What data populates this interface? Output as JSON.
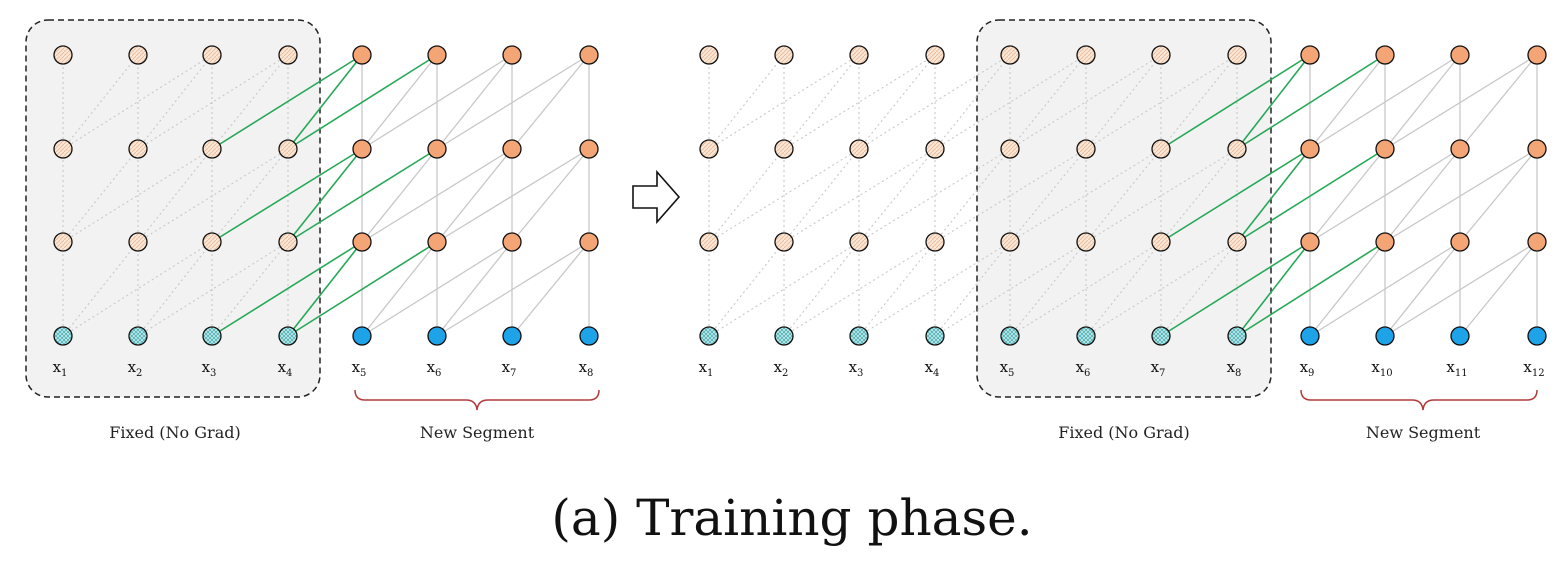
{
  "panels": [
    {
      "x_labels": [
        "x1",
        "x2",
        "x3",
        "x4",
        "x5",
        "x6",
        "x7",
        "x8"
      ],
      "fixed_label": "Fixed (No Grad)",
      "segment_label": "New Segment"
    },
    {
      "x_labels": [
        "x1",
        "x2",
        "x3",
        "x4",
        "x5",
        "x6",
        "x7",
        "x8",
        "x9",
        "x10",
        "x11",
        "x12"
      ],
      "fixed_label": "Fixed (No Grad)",
      "segment_label": "New Segment"
    }
  ],
  "caption": "(a) Training phase.",
  "colors": {
    "hidden_new": "#f4a576",
    "hidden_cached": "#f8e2cf",
    "input_new": "#1ea3e8",
    "input_cached": "#a6dde0",
    "edge_new": "#c8c8c8",
    "edge_cached": "#c8c8c8",
    "edge_recurrence": "#27a857",
    "fixed_box_fill": "#f2f2f2",
    "segment_brace": "#b23a3a"
  },
  "icons": {
    "transition": "right-arrow-icon"
  }
}
